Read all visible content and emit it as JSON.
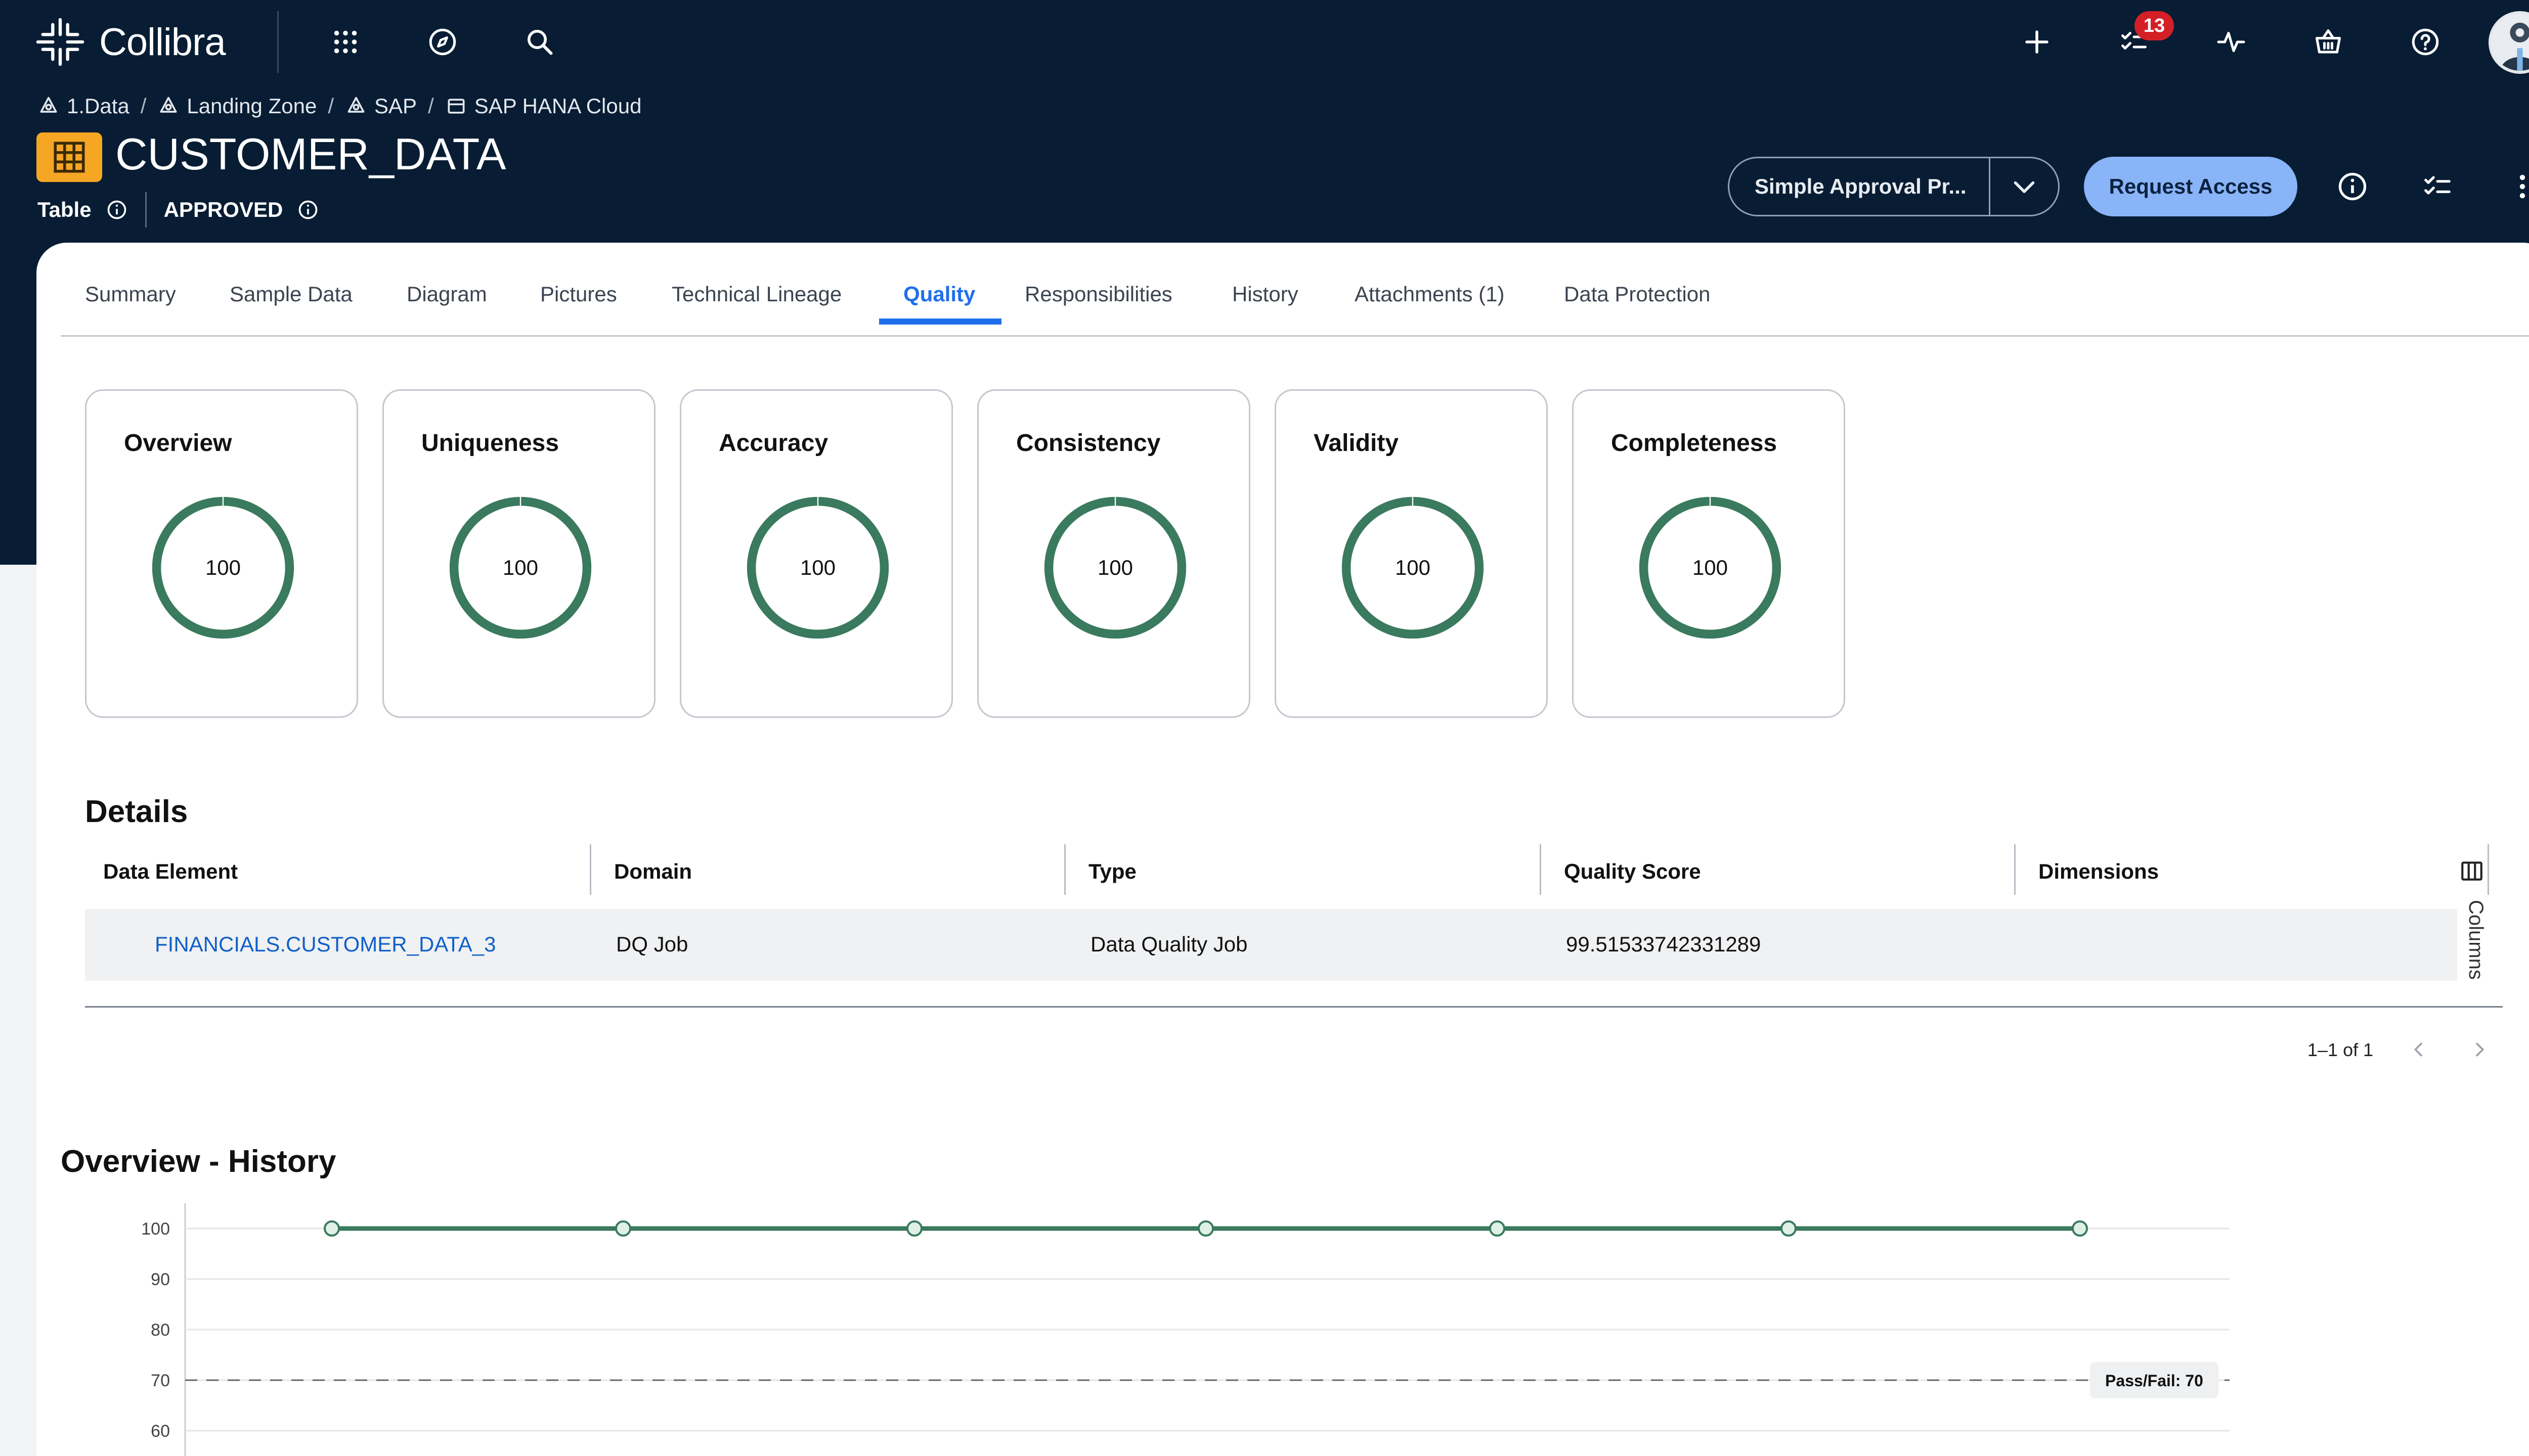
{
  "app": {
    "name": "Collibra",
    "notifications": "13"
  },
  "nav_icons": [
    "apps-grid-icon",
    "compass-icon",
    "search-icon"
  ],
  "nav_right_icons": [
    "plus-icon",
    "tasks-icon",
    "activity-icon",
    "basket-icon",
    "help-icon",
    "user-avatar"
  ],
  "breadcrumb": [
    {
      "icon": "community-icon",
      "label": "1.Data"
    },
    {
      "icon": "community-icon",
      "label": "Landing Zone"
    },
    {
      "icon": "community-icon",
      "label": "SAP"
    },
    {
      "icon": "database-icon",
      "label": "SAP HANA Cloud"
    }
  ],
  "asset": {
    "title": "CUSTOMER_DATA",
    "type": "Table",
    "status": "APPROVED"
  },
  "actions": {
    "workflow": "Simple Approval Pr...",
    "request_access": "Request Access"
  },
  "tabs": [
    "Summary",
    "Sample Data",
    "Diagram",
    "Pictures",
    "Technical Lineage",
    "Quality",
    "Responsibilities",
    "History",
    "Attachments (1)",
    "Data Protection"
  ],
  "active_tab": "Quality",
  "metrics": [
    {
      "title": "Overview",
      "value": "100"
    },
    {
      "title": "Uniqueness",
      "value": "100"
    },
    {
      "title": "Accuracy",
      "value": "100"
    },
    {
      "title": "Consistency",
      "value": "100"
    },
    {
      "title": "Validity",
      "value": "100"
    },
    {
      "title": "Completeness",
      "value": "100"
    }
  ],
  "colors": {
    "accent": "#1f6feb",
    "gauge": "#3a7a5e",
    "band": "#081d33",
    "request_button": "#8ab4f8",
    "badge": "#d41f26"
  },
  "details": {
    "title": "Details",
    "columns": [
      "Data Element",
      "Domain",
      "Type",
      "Quality Score",
      "Dimensions"
    ],
    "columns_toggle": "Columns",
    "rows": [
      {
        "data_element": "FINANCIALS.CUSTOMER_DATA_3",
        "domain": "DQ Job",
        "type": "Data Quality Job",
        "quality_score": "99.51533742331289",
        "dimensions": ""
      }
    ],
    "pagination": "1–1 of 1"
  },
  "history": {
    "title": "Overview - History"
  },
  "chart_data": {
    "type": "line",
    "title": "Overview - History",
    "ylim": [
      55,
      105
    ],
    "yticks": [
      100,
      90,
      80,
      70,
      60
    ],
    "series": [
      {
        "values": [
          100,
          100,
          100,
          100,
          100,
          100,
          100
        ]
      }
    ],
    "threshold": {
      "value": 70,
      "label": "Pass/Fail: 70"
    },
    "grid": true
  }
}
